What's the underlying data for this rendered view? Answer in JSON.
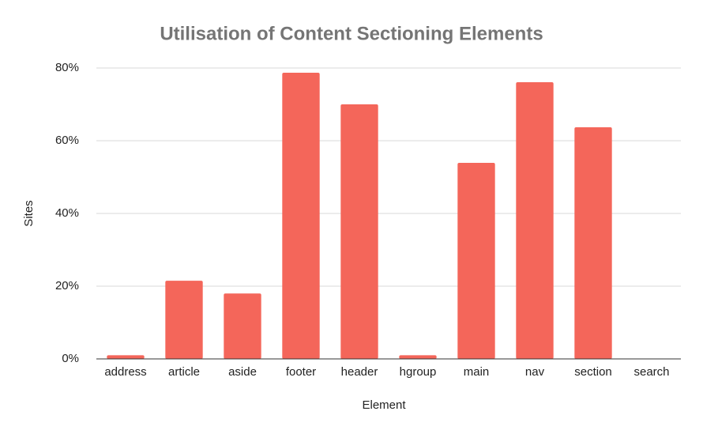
{
  "chart_data": {
    "type": "bar",
    "title": "Utilisation of Content Sectioning Elements",
    "x_label": "Element",
    "y_label": "Sites",
    "categories": [
      "address",
      "article",
      "aside",
      "footer",
      "header",
      "hgroup",
      "main",
      "nav",
      "section",
      "search"
    ],
    "values": [
      1,
      21.5,
      18,
      78.7,
      70,
      1,
      53.9,
      76.1,
      63.7,
      0
    ],
    "color": "#f4665a",
    "ylim": [
      0,
      80
    ],
    "yticks": [
      {
        "value": 0,
        "label": "0%"
      },
      {
        "value": 20,
        "label": "20%"
      },
      {
        "value": 40,
        "label": "40%"
      },
      {
        "value": 60,
        "label": "60%"
      },
      {
        "value": 80,
        "label": "80%"
      }
    ],
    "grid": true
  }
}
